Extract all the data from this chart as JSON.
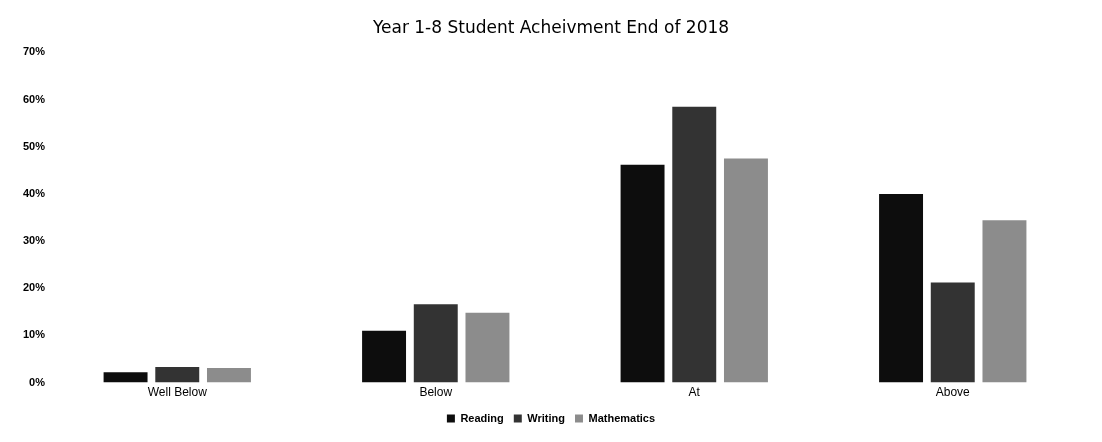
{
  "chart_data": {
    "type": "bar",
    "title": "Year 1-8 Student Acheivment End of 2018",
    "categories": [
      "Well Below",
      "Below",
      "At",
      "Above"
    ],
    "series": [
      {
        "name": "Reading",
        "color": "#0d0d0d",
        "values": [
          2.2,
          11,
          46.2,
          40
        ]
      },
      {
        "name": "Writing",
        "color": "#333333",
        "values": [
          3.3,
          16.6,
          58.5,
          21.2
        ]
      },
      {
        "name": "Mathematics",
        "color": "#8c8c8c",
        "values": [
          3.1,
          14.8,
          47.5,
          34.4
        ]
      }
    ],
    "ylim": [
      0,
      70
    ],
    "yticks": [
      {
        "value": 0,
        "label": "0%"
      },
      {
        "value": 10,
        "label": "10%"
      },
      {
        "value": 20,
        "label": "20%"
      },
      {
        "value": 30,
        "label": "30%"
      },
      {
        "value": 40,
        "label": "40%"
      },
      {
        "value": 50,
        "label": "50%"
      },
      {
        "value": 60,
        "label": "60%"
      },
      {
        "value": 70,
        "label": "70%"
      }
    ],
    "grid": false,
    "legend": "bottom"
  }
}
